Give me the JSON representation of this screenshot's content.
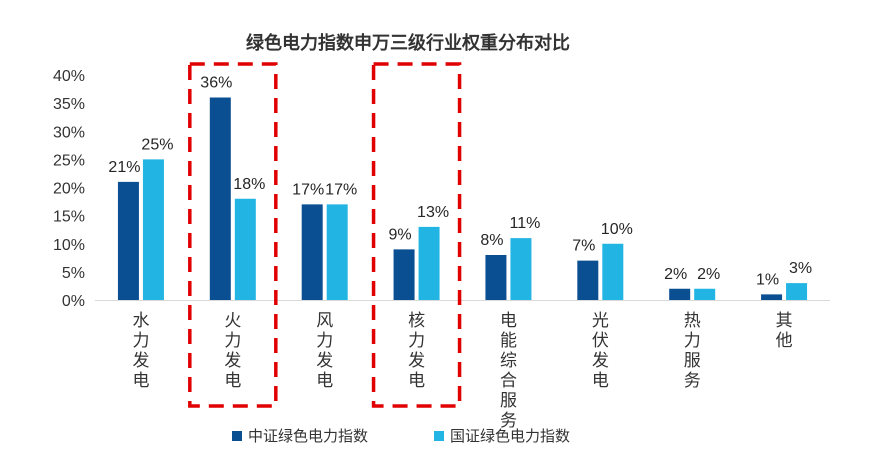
{
  "chart_data": {
    "type": "bar",
    "title": "绿色电力指数申万三级行业权重分布对比",
    "categories": [
      "水力发电",
      "火力发电",
      "风力发电",
      "核力发电",
      "电能综合服务",
      "光伏发电",
      "热力服务",
      "其他"
    ],
    "series": [
      {
        "name": "中证绿色电力指数",
        "color": "#0b4f93",
        "values": [
          21,
          36,
          17,
          9,
          8,
          7,
          2,
          1
        ],
        "labels": [
          "21%",
          "36%",
          "17%",
          "9%",
          "8%",
          "7%",
          "2%",
          "1%"
        ]
      },
      {
        "name": "国证绿色电力指数",
        "color": "#22b4e3",
        "values": [
          25,
          18,
          17,
          13,
          11,
          10,
          2,
          3
        ],
        "labels": [
          "25%",
          "18%",
          "17%",
          "13%",
          "11%",
          "10%",
          "2%",
          "3%"
        ]
      }
    ],
    "ylim": [
      0,
      40
    ],
    "yticks": [
      "0%",
      "5%",
      "10%",
      "15%",
      "20%",
      "25%",
      "30%",
      "35%",
      "40%"
    ],
    "grid": false,
    "legend": "bottom",
    "highlighted_categories": [
      "火力发电",
      "核力发电"
    ],
    "highlight_color": "#e00000"
  }
}
